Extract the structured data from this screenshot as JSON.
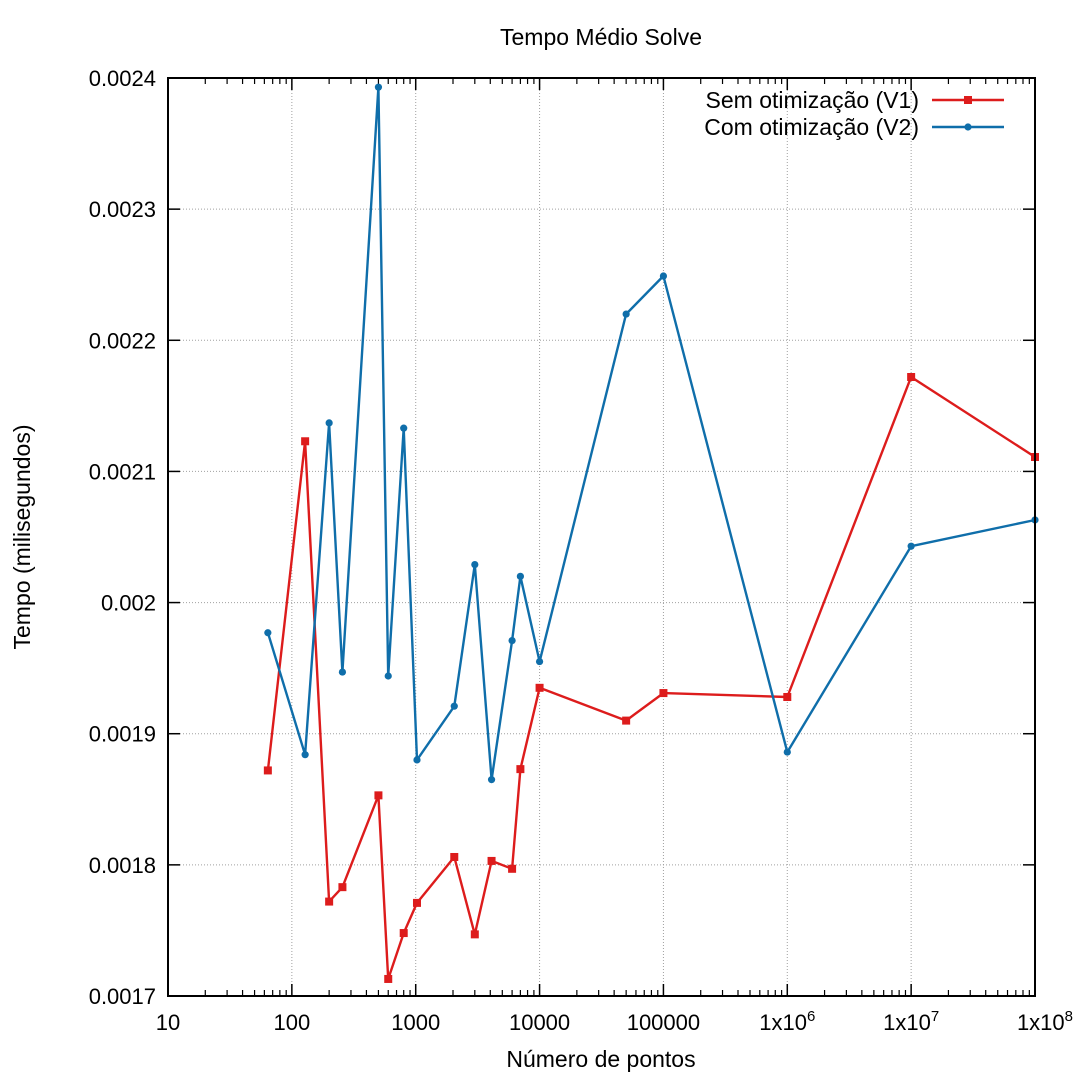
{
  "chart_data": {
    "type": "line",
    "title": "Tempo Médio Solve",
    "xlabel": "Número de pontos",
    "ylabel": "Tempo (milisegundos)",
    "x_scale": "log",
    "xlim": [
      10,
      100000000
    ],
    "ylim": [
      0.0017,
      0.0024
    ],
    "grid": true,
    "legend_position": "top-right",
    "x_ticks": [
      {
        "value": 10,
        "label": "10"
      },
      {
        "value": 100,
        "label": "100"
      },
      {
        "value": 1000,
        "label": "1000"
      },
      {
        "value": 10000,
        "label": "10000"
      },
      {
        "value": 100000,
        "label": "100000"
      },
      {
        "value": 1000000,
        "label": "1x10",
        "sup": "6"
      },
      {
        "value": 10000000,
        "label": "1x10",
        "sup": "7"
      },
      {
        "value": 100000000,
        "label": "1x10",
        "sup": "8"
      }
    ],
    "y_ticks": [
      {
        "value": 0.0017,
        "label": "0.0017"
      },
      {
        "value": 0.0018,
        "label": "0.0018"
      },
      {
        "value": 0.0019,
        "label": "0.0019"
      },
      {
        "value": 0.002,
        "label": "0.002"
      },
      {
        "value": 0.0021,
        "label": "0.0021"
      },
      {
        "value": 0.0022,
        "label": "0.0022"
      },
      {
        "value": 0.0023,
        "label": "0.0023"
      },
      {
        "value": 0.0024,
        "label": "0.0024"
      }
    ],
    "series": [
      {
        "name": "Sem otimização (V1)",
        "color": "#dd1c1c",
        "marker": "square",
        "x": [
          64,
          128,
          200,
          256,
          500,
          600,
          800,
          1024,
          2048,
          3000,
          4096,
          6000,
          7000,
          10000,
          50000,
          100000,
          1000000,
          10000000,
          100000000
        ],
        "y": [
          0.001872,
          0.002123,
          0.001772,
          0.001783,
          0.001853,
          0.001713,
          0.001748,
          0.001771,
          0.001806,
          0.001747,
          0.001803,
          0.001797,
          0.001873,
          0.001935,
          0.00191,
          0.001931,
          0.001928,
          0.002172,
          0.002111
        ]
      },
      {
        "name": "Com otimização (V2)",
        "color": "#0f6eaa",
        "marker": "circle",
        "x": [
          64,
          128,
          200,
          256,
          500,
          600,
          800,
          1024,
          2048,
          3000,
          4096,
          6000,
          7000,
          10000,
          50000,
          100000,
          1000000,
          10000000,
          100000000
        ],
        "y": [
          0.001977,
          0.001884,
          0.002137,
          0.001947,
          0.002393,
          0.001944,
          0.002133,
          0.00188,
          0.001921,
          0.002029,
          0.001865,
          0.001971,
          0.00202,
          0.001955,
          0.00222,
          0.002249,
          0.001886,
          0.002043,
          0.002063
        ]
      }
    ]
  }
}
